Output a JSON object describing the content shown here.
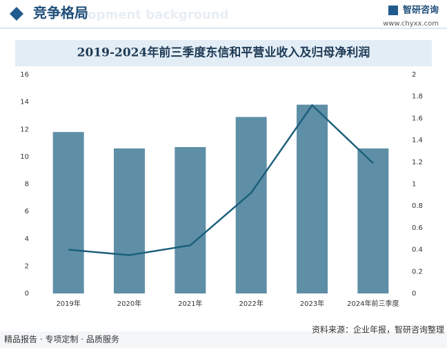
{
  "header": {
    "title": "竞争格局",
    "subtitle": "Development background",
    "logo": "智研咨询",
    "url": "www.chyxx.com"
  },
  "chart_data": {
    "type": "bar",
    "title": "2019-2024年前三季度东信和平营业收入及归母净利润",
    "categories": [
      "2019年",
      "2020年",
      "2021年",
      "2022年",
      "2023年",
      "2024年前三季度"
    ],
    "series": [
      {
        "type": "bar",
        "color": "#5e8fa6",
        "values": [
          11.8,
          10.6,
          10.7,
          12.9,
          13.8,
          10.6
        ]
      },
      {
        "type": "line",
        "axis": "y2",
        "color": "#1c5f7c",
        "values": [
          0.4,
          0.35,
          0.44,
          0.92,
          1.72,
          1.19
        ]
      }
    ],
    "ylim": [
      0,
      16
    ],
    "yticks": [
      0,
      2,
      4,
      6,
      8,
      10,
      12,
      14,
      16
    ],
    "y2lim": [
      0,
      2
    ],
    "y2ticks": [
      0,
      0.2,
      0.4,
      0.6,
      0.8,
      1,
      1.2,
      1.4,
      1.6,
      1.8,
      2
    ]
  },
  "footer": {
    "slogan": "精品报告 · 专项定制 · 品质服务",
    "source": "资料来源：企业年报，智研咨询整理"
  }
}
